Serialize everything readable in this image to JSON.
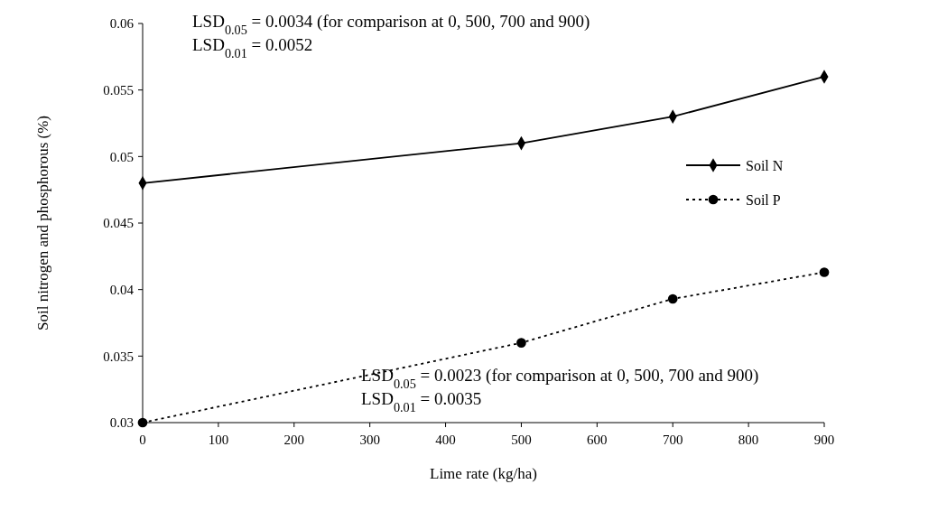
{
  "chart_data": {
    "type": "line",
    "xlabel": "Lime rate (kg/ha)",
    "ylabel": "Soil nitrogen and phosphorous (%)",
    "x": [
      0,
      500,
      700,
      900
    ],
    "series": [
      {
        "name": "Soil N",
        "color": "#000000",
        "values": [
          0.048,
          0.051,
          0.053,
          0.056
        ],
        "marker": "diamond",
        "line_style": "solid"
      },
      {
        "name": "Soil P",
        "color": "#000000",
        "values": [
          0.03,
          0.036,
          0.0393,
          0.0413
        ],
        "marker": "circle",
        "line_style": "dotted"
      }
    ],
    "xlim": [
      0,
      900
    ],
    "xticks": [
      0,
      100,
      200,
      300,
      400,
      500,
      600,
      700,
      800,
      900
    ],
    "ylim": [
      0.03,
      0.06
    ],
    "yticks": [
      0.03,
      0.035,
      0.04,
      0.045,
      0.05,
      0.055,
      0.06
    ],
    "grid": false,
    "legend": "right",
    "annotations": [
      "LSD$_{0.05}$ = 0.0034 (for comparison at 0, 500, 700 and 900)",
      "LSD$_{0.01}$ = 0.0052",
      "LSD$_{0.05}$ = 0.0023 (for comparison at 0, 500, 700 and 900)",
      "LSD$_{0.01}$ = 0.0035"
    ]
  }
}
